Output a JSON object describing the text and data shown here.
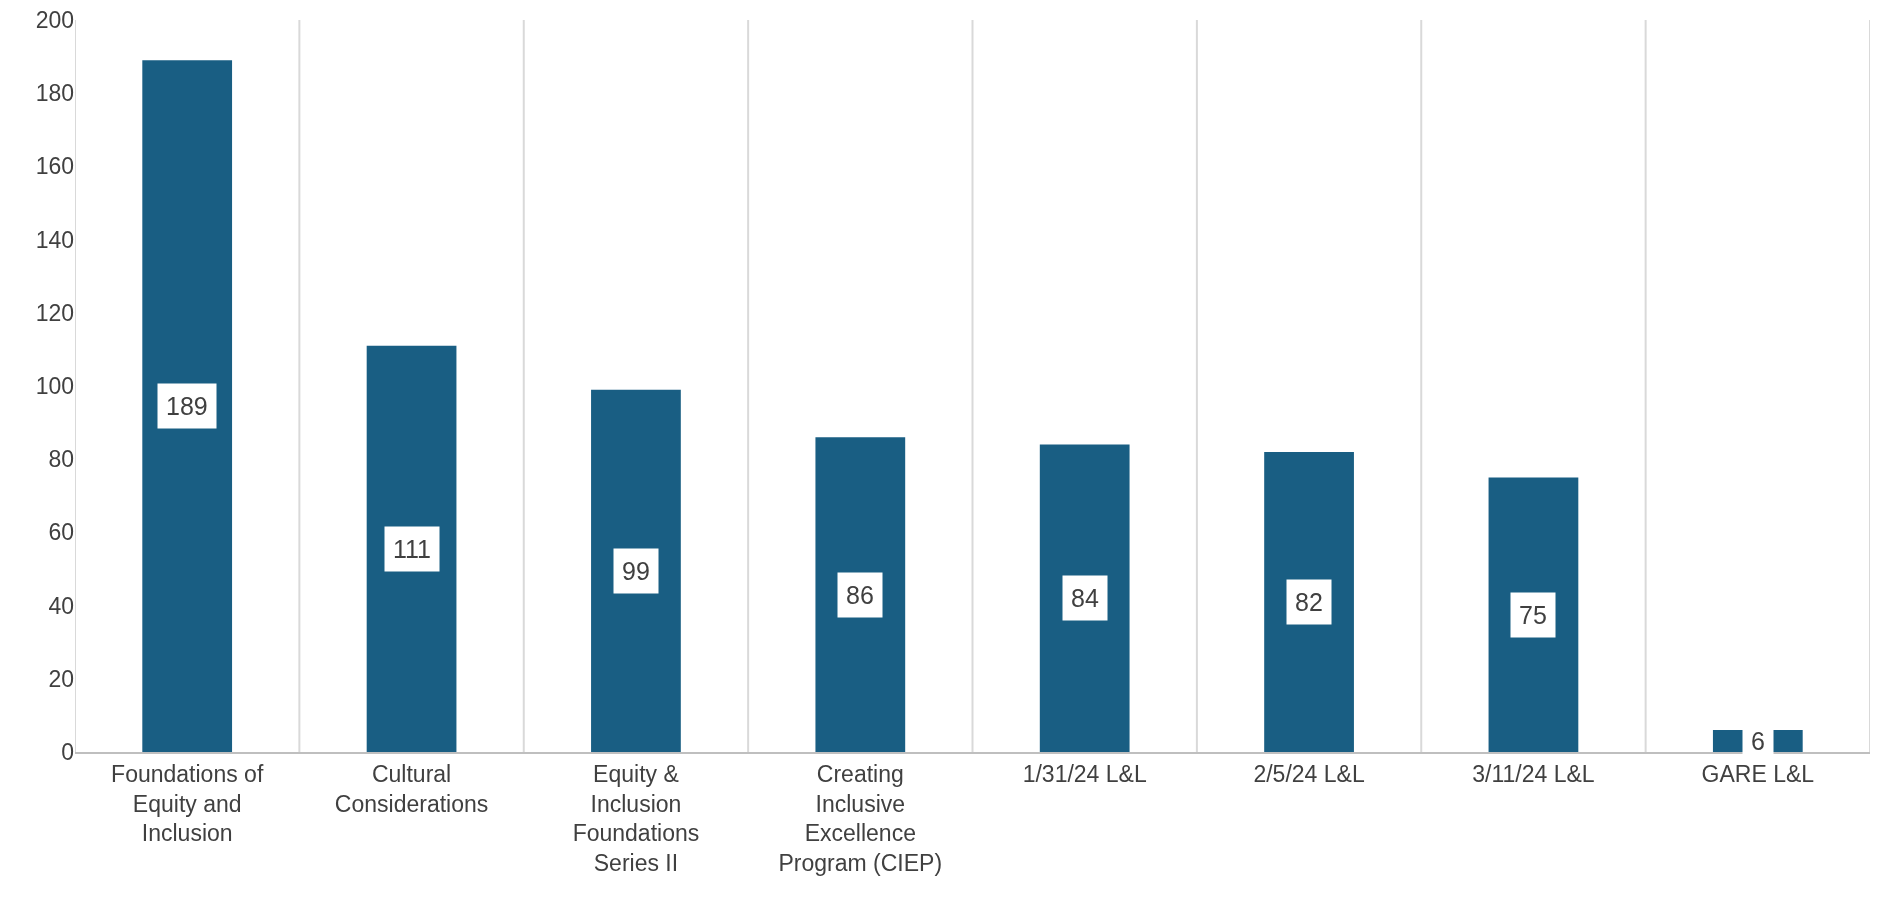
{
  "chart_data": {
    "type": "bar",
    "categories": [
      "Foundations of Equity and Inclusion",
      "Cultural Considerations",
      "Equity & Inclusion Foundations Series II",
      "Creating Inclusive Excellence Program (CIEP)",
      "1/31/24 L&L",
      "2/5/24 L&L",
      "3/11/24 L&L",
      "GARE L&L"
    ],
    "values": [
      189,
      111,
      99,
      86,
      84,
      82,
      75,
      6
    ],
    "color": "#195e83",
    "ylim": [
      0,
      200
    ],
    "yticks": [
      0,
      20,
      40,
      60,
      80,
      100,
      120,
      140,
      160,
      180,
      200
    ],
    "grid": "x",
    "data_labels": true
  }
}
